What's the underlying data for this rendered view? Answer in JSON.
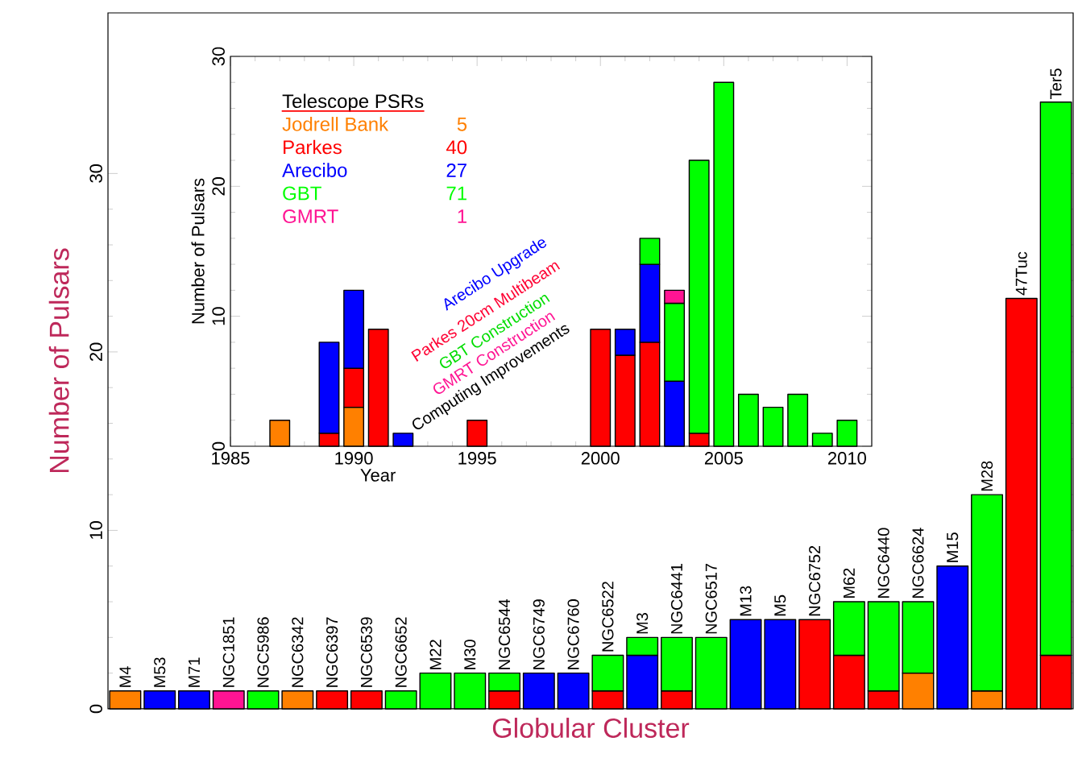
{
  "chart_data": [
    {
      "type": "bar",
      "stacked": true,
      "xlabel": "Globular Cluster",
      "ylabel": "Number of Pulsars",
      "categories": [
        "M4",
        "M53",
        "M71",
        "NGC1851",
        "NGC5986",
        "NGC6342",
        "NGC6397",
        "NGC6539",
        "NGC6652",
        "M22",
        "M30",
        "NGC6544",
        "NGC6749",
        "NGC6760",
        "NGC6522",
        "M3",
        "NGC6441",
        "NGC6517",
        "M13",
        "M5",
        "NGC6752",
        "M62",
        "NGC6440",
        "NGC6624",
        "M15",
        "M28",
        "47Tuc",
        "Ter5"
      ],
      "ylim": [
        0,
        39
      ],
      "yticks": [
        0,
        10,
        20,
        30
      ],
      "series": [
        {
          "color": "#ff8000",
          "values": [
            1,
            null,
            null,
            null,
            null,
            1,
            null,
            null,
            null,
            null,
            null,
            null,
            null,
            null,
            null,
            null,
            null,
            null,
            null,
            null,
            null,
            null,
            null,
            2,
            null,
            1,
            null,
            null
          ]
        },
        {
          "color": "#ff0000",
          "values": [
            null,
            null,
            null,
            null,
            null,
            null,
            1,
            1,
            null,
            null,
            null,
            1,
            null,
            null,
            1,
            null,
            1,
            null,
            null,
            null,
            5,
            3,
            1,
            null,
            null,
            null,
            23,
            3
          ]
        },
        {
          "color": "#0000ff",
          "values": [
            null,
            1,
            1,
            null,
            null,
            null,
            null,
            null,
            null,
            null,
            null,
            null,
            2,
            2,
            null,
            3,
            null,
            null,
            5,
            5,
            null,
            null,
            null,
            null,
            8,
            null,
            null,
            null
          ]
        },
        {
          "color": "#00ff00",
          "values": [
            null,
            null,
            null,
            null,
            1,
            null,
            null,
            null,
            1,
            2,
            2,
            1,
            null,
            null,
            2,
            1,
            3,
            4,
            null,
            null,
            null,
            3,
            5,
            4,
            null,
            11,
            null,
            31
          ]
        },
        {
          "color": "#ff1493",
          "values": [
            null,
            null,
            null,
            1,
            null,
            null,
            null,
            null,
            null,
            null,
            null,
            null,
            null,
            null,
            null,
            null,
            null,
            null,
            null,
            null,
            null,
            null,
            null,
            null,
            null,
            null,
            null,
            null
          ]
        }
      ]
    },
    {
      "type": "bar",
      "stacked": true,
      "xlabel": "Year",
      "ylabel": "Number of Pulsars",
      "legend": "top left",
      "legend_title": "Telescope PSRs",
      "x": [
        1987,
        1989,
        1990,
        1991,
        1992,
        1995,
        2000,
        2001,
        2002,
        2003,
        2004,
        2005,
        2006,
        2007,
        2008,
        2009,
        2010
      ],
      "xlim": [
        1985,
        2011
      ],
      "xticks": [
        1985,
        1990,
        1995,
        2000,
        2005,
        2010
      ],
      "ylim": [
        0,
        30
      ],
      "yticks": [
        0,
        10,
        20,
        30
      ],
      "series": [
        {
          "name": "Jodrell Bank",
          "color": "#ff8000",
          "values": [
            2,
            null,
            3,
            null,
            null,
            null,
            null,
            null,
            null,
            null,
            null,
            null,
            null,
            null,
            null,
            null,
            null
          ]
        },
        {
          "name": "Parkes",
          "color": "#ff0000",
          "values": [
            null,
            1,
            3,
            9,
            null,
            2,
            9,
            7,
            8,
            null,
            1,
            null,
            null,
            null,
            null,
            null,
            null
          ]
        },
        {
          "name": "Arecibo",
          "color": "#0000ff",
          "values": [
            null,
            7,
            6,
            null,
            1,
            null,
            null,
            2,
            6,
            5,
            null,
            null,
            null,
            null,
            null,
            null,
            null
          ]
        },
        {
          "name": "GBT",
          "color": "#00ff00",
          "values": [
            null,
            null,
            null,
            null,
            null,
            null,
            null,
            null,
            2,
            6,
            21,
            28,
            4,
            3,
            4,
            1,
            2
          ]
        },
        {
          "name": "GMRT",
          "color": "#ff1493",
          "values": [
            null,
            null,
            null,
            null,
            null,
            null,
            null,
            null,
            null,
            1,
            null,
            null,
            null,
            null,
            null,
            null,
            null
          ]
        }
      ],
      "annotations": [
        "5",
        "40",
        "27",
        "71",
        "1",
        "Arecibo Upgrade",
        "Parkes 20cm Multibeam",
        "GBT Construction",
        "GMRT Construction",
        "Computing Improvements"
      ]
    }
  ]
}
